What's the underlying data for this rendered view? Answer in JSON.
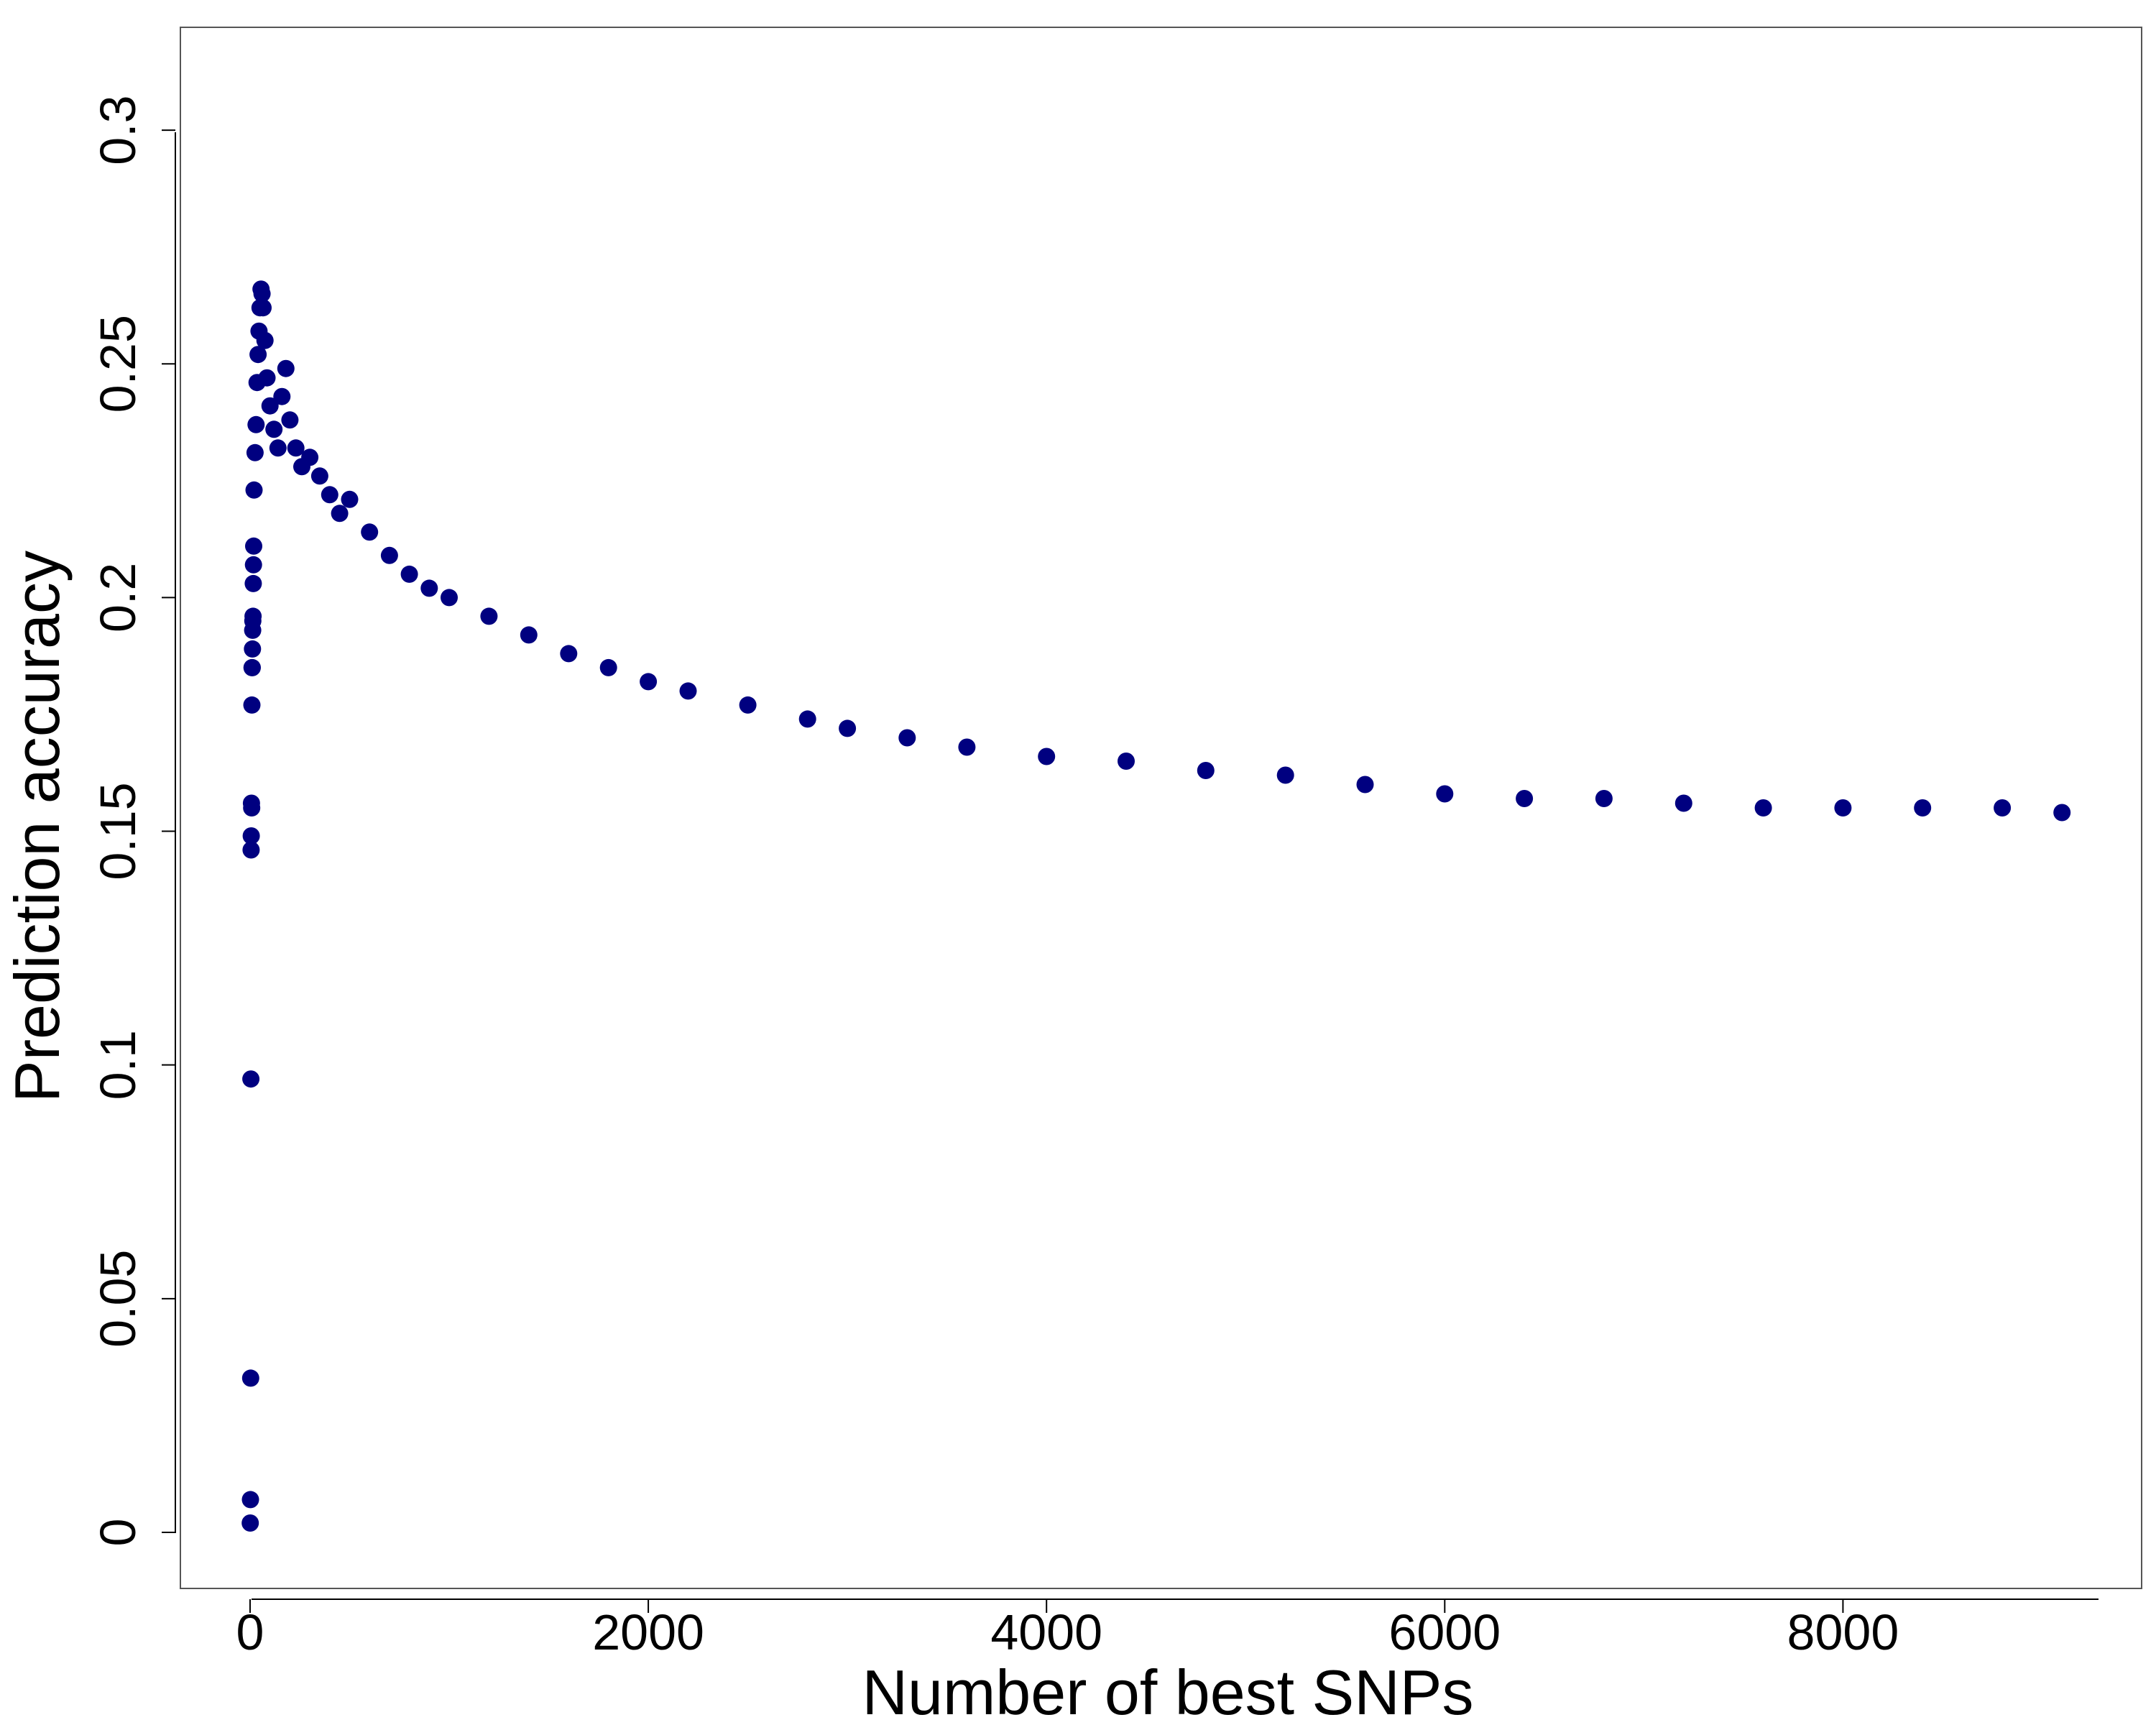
{
  "chart_data": {
    "type": "scatter",
    "title": "",
    "xlabel": "Number of best SNPs",
    "ylabel": "Prediction accuracy",
    "xlim": [
      -350,
      9500
    ],
    "ylim": [
      -0.012,
      0.322
    ],
    "x_ticks": [
      0,
      2000,
      4000,
      6000,
      8000
    ],
    "x_tick_labels": [
      "0",
      "2000",
      "4000",
      "6000",
      "8000"
    ],
    "y_ticks": [
      0,
      0.05,
      0.1,
      0.15,
      0.2,
      0.25,
      0.3
    ],
    "y_tick_labels": [
      "0",
      "0.05",
      "0.1",
      "0.15",
      "0.2",
      "0.25",
      "0.3"
    ],
    "grid": false,
    "legend": "none",
    "marker_color": "#000080",
    "series": [
      {
        "points": [
          [
            1,
            0.002
          ],
          [
            2,
            0.007
          ],
          [
            3,
            0.033
          ],
          [
            4,
            0.097
          ],
          [
            5,
            0.146
          ],
          [
            6,
            0.149
          ],
          [
            7,
            0.156
          ],
          [
            8,
            0.155
          ],
          [
            9,
            0.177
          ],
          [
            10,
            0.185
          ],
          [
            11,
            0.185
          ],
          [
            12,
            0.189
          ],
          [
            13,
            0.193
          ],
          [
            14,
            0.195
          ],
          [
            15,
            0.196
          ],
          [
            16,
            0.203
          ],
          [
            17,
            0.207
          ],
          [
            18,
            0.211
          ],
          [
            20,
            0.223
          ],
          [
            25,
            0.231
          ],
          [
            30,
            0.237
          ],
          [
            35,
            0.246
          ],
          [
            40,
            0.252
          ],
          [
            45,
            0.257
          ],
          [
            50,
            0.262
          ],
          [
            55,
            0.266
          ],
          [
            60,
            0.265
          ],
          [
            65,
            0.262
          ],
          [
            75,
            0.255
          ],
          [
            85,
            0.247
          ],
          [
            100,
            0.241
          ],
          [
            120,
            0.236
          ],
          [
            140,
            0.232
          ],
          [
            160,
            0.243
          ],
          [
            180,
            0.249
          ],
          [
            200,
            0.238
          ],
          [
            230,
            0.232
          ],
          [
            260,
            0.228
          ],
          [
            300,
            0.23
          ],
          [
            350,
            0.226
          ],
          [
            400,
            0.222
          ],
          [
            450,
            0.218
          ],
          [
            500,
            0.221
          ],
          [
            600,
            0.214
          ],
          [
            700,
            0.209
          ],
          [
            800,
            0.205
          ],
          [
            900,
            0.202
          ],
          [
            1000,
            0.2
          ],
          [
            1200,
            0.196
          ],
          [
            1400,
            0.192
          ],
          [
            1600,
            0.188
          ],
          [
            1800,
            0.185
          ],
          [
            2000,
            0.182
          ],
          [
            2200,
            0.18
          ],
          [
            2500,
            0.177
          ],
          [
            2800,
            0.174
          ],
          [
            3000,
            0.172
          ],
          [
            3300,
            0.17
          ],
          [
            3600,
            0.168
          ],
          [
            4000,
            0.166
          ],
          [
            4400,
            0.165
          ],
          [
            4800,
            0.163
          ],
          [
            5200,
            0.162
          ],
          [
            5600,
            0.16
          ],
          [
            6000,
            0.158
          ],
          [
            6400,
            0.157
          ],
          [
            6800,
            0.157
          ],
          [
            7200,
            0.156
          ],
          [
            7600,
            0.155
          ],
          [
            8000,
            0.155
          ],
          [
            8400,
            0.155
          ],
          [
            8800,
            0.155
          ],
          [
            9100,
            0.154
          ]
        ]
      }
    ]
  }
}
